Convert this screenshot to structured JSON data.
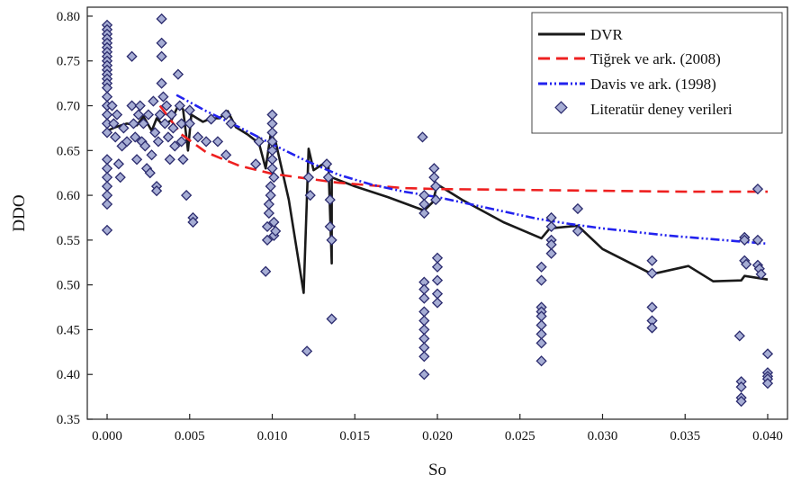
{
  "chart_data": {
    "type": "scatter",
    "xlabel": "So",
    "ylabel": "DDO",
    "xlim": [
      -0.0012,
      0.0412
    ],
    "ylim": [
      0.35,
      0.81
    ],
    "grid": false,
    "legend_position": "top-right",
    "x_ticks": [
      "0.000",
      "0.005",
      "0.010",
      "0.015",
      "0.020",
      "0.025",
      "0.030",
      "0.035",
      "0.040"
    ],
    "y_ticks": [
      "0.35",
      "0.40",
      "0.45",
      "0.50",
      "0.55",
      "0.60",
      "0.65",
      "0.70",
      "0.75",
      "0.80"
    ],
    "series": [
      {
        "name": "DVR",
        "kind": "line",
        "color": "#1a1a1a",
        "style": "solid",
        "points": [
          [
            0.0,
            0.672
          ],
          [
            0.0005,
            0.676
          ],
          [
            0.0012,
            0.68
          ],
          [
            0.0018,
            0.678
          ],
          [
            0.0022,
            0.688
          ],
          [
            0.0027,
            0.672
          ],
          [
            0.003,
            0.686
          ],
          [
            0.0034,
            0.678
          ],
          [
            0.0039,
            0.684
          ],
          [
            0.0043,
            0.7
          ],
          [
            0.0046,
            0.696
          ],
          [
            0.0049,
            0.65
          ],
          [
            0.0051,
            0.69
          ],
          [
            0.0058,
            0.682
          ],
          [
            0.0063,
            0.686
          ],
          [
            0.0068,
            0.686
          ],
          [
            0.0073,
            0.694
          ],
          [
            0.0078,
            0.676
          ],
          [
            0.0085,
            0.668
          ],
          [
            0.0092,
            0.658
          ],
          [
            0.0096,
            0.63
          ],
          [
            0.0099,
            0.668
          ],
          [
            0.0102,
            0.66
          ],
          [
            0.011,
            0.595
          ],
          [
            0.0119,
            0.491
          ],
          [
            0.0122,
            0.652
          ],
          [
            0.0125,
            0.628
          ],
          [
            0.013,
            0.634
          ],
          [
            0.0134,
            0.636
          ],
          [
            0.0136,
            0.524
          ],
          [
            0.0136,
            0.62
          ],
          [
            0.015,
            0.61
          ],
          [
            0.017,
            0.598
          ],
          [
            0.0192,
            0.583
          ],
          [
            0.0197,
            0.592
          ],
          [
            0.02,
            0.612
          ],
          [
            0.0215,
            0.595
          ],
          [
            0.024,
            0.57
          ],
          [
            0.0263,
            0.552
          ],
          [
            0.0268,
            0.563
          ],
          [
            0.0285,
            0.566
          ],
          [
            0.03,
            0.54
          ],
          [
            0.033,
            0.512
          ],
          [
            0.0352,
            0.521
          ],
          [
            0.0367,
            0.504
          ],
          [
            0.0384,
            0.505
          ],
          [
            0.0386,
            0.51
          ],
          [
            0.04,
            0.506
          ]
        ]
      },
      {
        "name": "Tiğrek ve ark. (2008)",
        "kind": "line",
        "color": "#ee2020",
        "style": "dashed",
        "points": [
          [
            0.0032,
            0.7
          ],
          [
            0.0045,
            0.668
          ],
          [
            0.006,
            0.648
          ],
          [
            0.008,
            0.633
          ],
          [
            0.01,
            0.624
          ],
          [
            0.012,
            0.619
          ],
          [
            0.014,
            0.614
          ],
          [
            0.016,
            0.611
          ],
          [
            0.018,
            0.608
          ],
          [
            0.02,
            0.607
          ],
          [
            0.025,
            0.606
          ],
          [
            0.03,
            0.605
          ],
          [
            0.035,
            0.604
          ],
          [
            0.04,
            0.604
          ]
        ]
      },
      {
        "name": "Davis ve ark. (1998)",
        "kind": "line",
        "color": "#2222ee",
        "style": "dashdotdot",
        "points": [
          [
            0.0042,
            0.712
          ],
          [
            0.006,
            0.694
          ],
          [
            0.008,
            0.676
          ],
          [
            0.01,
            0.657
          ],
          [
            0.012,
            0.639
          ],
          [
            0.014,
            0.623
          ],
          [
            0.016,
            0.612
          ],
          [
            0.018,
            0.604
          ],
          [
            0.02,
            0.598
          ],
          [
            0.022,
            0.59
          ],
          [
            0.024,
            0.582
          ],
          [
            0.026,
            0.574
          ],
          [
            0.028,
            0.568
          ],
          [
            0.03,
            0.563
          ],
          [
            0.032,
            0.559
          ],
          [
            0.034,
            0.555
          ],
          [
            0.036,
            0.552
          ],
          [
            0.038,
            0.549
          ],
          [
            0.04,
            0.546
          ]
        ]
      },
      {
        "name": "Literatür deney verileri",
        "kind": "scatter",
        "marker": "diamond",
        "color": "#a6add4",
        "edge_color": "#2b2b6e",
        "points": [
          [
            0.0,
            0.79
          ],
          [
            0.0,
            0.785
          ],
          [
            0.0,
            0.78
          ],
          [
            0.0,
            0.775
          ],
          [
            0.0,
            0.77
          ],
          [
            0.0,
            0.765
          ],
          [
            0.0,
            0.76
          ],
          [
            0.0,
            0.755
          ],
          [
            0.0,
            0.75
          ],
          [
            0.0,
            0.745
          ],
          [
            0.0,
            0.74
          ],
          [
            0.0,
            0.735
          ],
          [
            0.0,
            0.73
          ],
          [
            0.0,
            0.725
          ],
          [
            0.0,
            0.72
          ],
          [
            0.0,
            0.71
          ],
          [
            0.0,
            0.7
          ],
          [
            0.0,
            0.69
          ],
          [
            0.0,
            0.68
          ],
          [
            0.0,
            0.67
          ],
          [
            0.0,
            0.64
          ],
          [
            0.0,
            0.63
          ],
          [
            0.0,
            0.62
          ],
          [
            0.0,
            0.61
          ],
          [
            0.0,
            0.6
          ],
          [
            0.0,
            0.59
          ],
          [
            0.0,
            0.561
          ],
          [
            0.0003,
            0.7
          ],
          [
            0.0004,
            0.68
          ],
          [
            0.0005,
            0.665
          ],
          [
            0.0006,
            0.69
          ],
          [
            0.0007,
            0.635
          ],
          [
            0.0008,
            0.62
          ],
          [
            0.0009,
            0.655
          ],
          [
            0.001,
            0.675
          ],
          [
            0.0012,
            0.66
          ],
          [
            0.0015,
            0.755
          ],
          [
            0.0015,
            0.7
          ],
          [
            0.0016,
            0.68
          ],
          [
            0.0017,
            0.665
          ],
          [
            0.0018,
            0.64
          ],
          [
            0.0019,
            0.69
          ],
          [
            0.002,
            0.7
          ],
          [
            0.0021,
            0.66
          ],
          [
            0.0022,
            0.68
          ],
          [
            0.0023,
            0.655
          ],
          [
            0.0024,
            0.63
          ],
          [
            0.0025,
            0.69
          ],
          [
            0.0026,
            0.625
          ],
          [
            0.0027,
            0.645
          ],
          [
            0.0028,
            0.705
          ],
          [
            0.0029,
            0.67
          ],
          [
            0.003,
            0.61
          ],
          [
            0.003,
            0.605
          ],
          [
            0.0031,
            0.66
          ],
          [
            0.0032,
            0.69
          ],
          [
            0.0033,
            0.797
          ],
          [
            0.0033,
            0.77
          ],
          [
            0.0033,
            0.755
          ],
          [
            0.0033,
            0.725
          ],
          [
            0.0034,
            0.71
          ],
          [
            0.0035,
            0.68
          ],
          [
            0.0036,
            0.7
          ],
          [
            0.0037,
            0.665
          ],
          [
            0.0038,
            0.64
          ],
          [
            0.0039,
            0.69
          ],
          [
            0.004,
            0.675
          ],
          [
            0.0041,
            0.655
          ],
          [
            0.0043,
            0.735
          ],
          [
            0.0044,
            0.7
          ],
          [
            0.0045,
            0.68
          ],
          [
            0.0045,
            0.66
          ],
          [
            0.0046,
            0.64
          ],
          [
            0.0048,
            0.6
          ],
          [
            0.005,
            0.695
          ],
          [
            0.005,
            0.68
          ],
          [
            0.0052,
            0.575
          ],
          [
            0.0052,
            0.57
          ],
          [
            0.0055,
            0.665
          ],
          [
            0.006,
            0.66
          ],
          [
            0.0063,
            0.685
          ],
          [
            0.0067,
            0.66
          ],
          [
            0.0072,
            0.69
          ],
          [
            0.0075,
            0.68
          ],
          [
            0.0072,
            0.645
          ],
          [
            0.009,
            0.635
          ],
          [
            0.0092,
            0.66
          ],
          [
            0.0096,
            0.515
          ],
          [
            0.0097,
            0.55
          ],
          [
            0.0097,
            0.565
          ],
          [
            0.0098,
            0.58
          ],
          [
            0.0098,
            0.59
          ],
          [
            0.0099,
            0.6
          ],
          [
            0.0099,
            0.61
          ],
          [
            0.01,
            0.69
          ],
          [
            0.01,
            0.68
          ],
          [
            0.01,
            0.67
          ],
          [
            0.01,
            0.66
          ],
          [
            0.01,
            0.65
          ],
          [
            0.01,
            0.64
          ],
          [
            0.01,
            0.63
          ],
          [
            0.0101,
            0.62
          ],
          [
            0.0101,
            0.57
          ],
          [
            0.0101,
            0.555
          ],
          [
            0.0102,
            0.56
          ],
          [
            0.0121,
            0.426
          ],
          [
            0.0122,
            0.62
          ],
          [
            0.0123,
            0.6
          ],
          [
            0.0133,
            0.635
          ],
          [
            0.0134,
            0.62
          ],
          [
            0.0135,
            0.595
          ],
          [
            0.0135,
            0.565
          ],
          [
            0.0136,
            0.55
          ],
          [
            0.0136,
            0.462
          ],
          [
            0.0191,
            0.665
          ],
          [
            0.0192,
            0.6
          ],
          [
            0.0192,
            0.59
          ],
          [
            0.0192,
            0.58
          ],
          [
            0.0192,
            0.503
          ],
          [
            0.0192,
            0.495
          ],
          [
            0.0192,
            0.485
          ],
          [
            0.0192,
            0.47
          ],
          [
            0.0192,
            0.46
          ],
          [
            0.0192,
            0.45
          ],
          [
            0.0192,
            0.44
          ],
          [
            0.0192,
            0.43
          ],
          [
            0.0192,
            0.42
          ],
          [
            0.0192,
            0.4
          ],
          [
            0.0198,
            0.63
          ],
          [
            0.0198,
            0.62
          ],
          [
            0.0199,
            0.61
          ],
          [
            0.0199,
            0.595
          ],
          [
            0.02,
            0.53
          ],
          [
            0.02,
            0.52
          ],
          [
            0.02,
            0.505
          ],
          [
            0.02,
            0.49
          ],
          [
            0.02,
            0.48
          ],
          [
            0.0263,
            0.52
          ],
          [
            0.0263,
            0.505
          ],
          [
            0.0263,
            0.475
          ],
          [
            0.0263,
            0.47
          ],
          [
            0.0263,
            0.465
          ],
          [
            0.0263,
            0.455
          ],
          [
            0.0263,
            0.445
          ],
          [
            0.0263,
            0.435
          ],
          [
            0.0263,
            0.415
          ],
          [
            0.0269,
            0.575
          ],
          [
            0.0269,
            0.565
          ],
          [
            0.0269,
            0.55
          ],
          [
            0.0269,
            0.545
          ],
          [
            0.0269,
            0.535
          ],
          [
            0.0285,
            0.585
          ],
          [
            0.0285,
            0.56
          ],
          [
            0.033,
            0.527
          ],
          [
            0.033,
            0.513
          ],
          [
            0.033,
            0.475
          ],
          [
            0.033,
            0.46
          ],
          [
            0.033,
            0.452
          ],
          [
            0.0383,
            0.443
          ],
          [
            0.0384,
            0.392
          ],
          [
            0.0384,
            0.386
          ],
          [
            0.0384,
            0.374
          ],
          [
            0.0384,
            0.37
          ],
          [
            0.0386,
            0.553
          ],
          [
            0.0386,
            0.55
          ],
          [
            0.0386,
            0.527
          ],
          [
            0.0387,
            0.523
          ],
          [
            0.0394,
            0.607
          ],
          [
            0.0394,
            0.55
          ],
          [
            0.0394,
            0.522
          ],
          [
            0.0395,
            0.518
          ],
          [
            0.0396,
            0.512
          ],
          [
            0.04,
            0.423
          ],
          [
            0.04,
            0.402
          ],
          [
            0.04,
            0.398
          ],
          [
            0.04,
            0.395
          ],
          [
            0.04,
            0.39
          ]
        ]
      }
    ]
  }
}
